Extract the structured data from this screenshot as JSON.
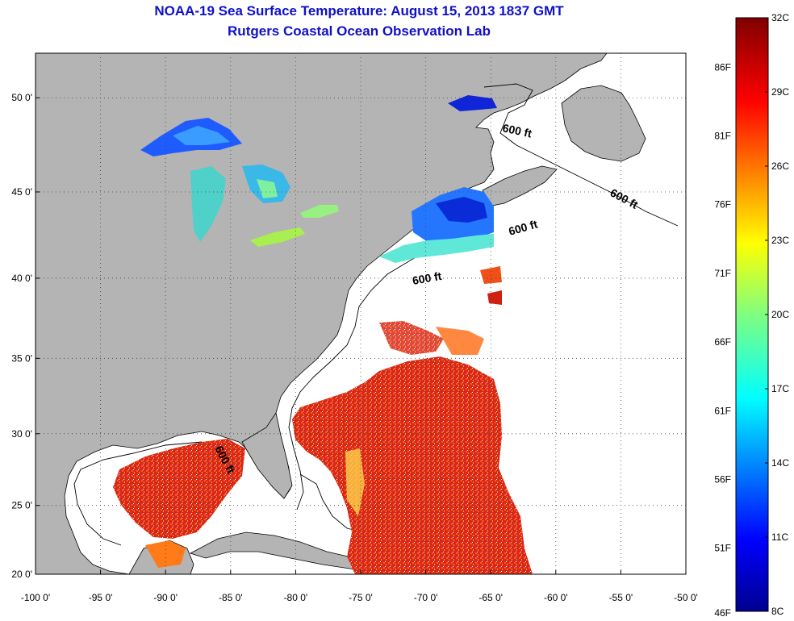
{
  "title": "NOAA-19 Sea Surface Temperature:  August 15, 2013 1837 GMT",
  "subtitle": "Rutgers Coastal Ocean Observation Lab",
  "x_ticks": [
    "-100 0'",
    "-95 0'",
    "-90 0'",
    "-85 0'",
    "-80 0'",
    "-75 0'",
    "-70 0'",
    "-65 0'",
    "-60 0'",
    "-55 0'",
    "-50 0'"
  ],
  "y_ticks": [
    "50 0'",
    "45 0'",
    "40 0'",
    "35 0'",
    "30 0'",
    "25 0'",
    "20 0'"
  ],
  "depth_labels": [
    "600 ft",
    "600 ft",
    "600 ft",
    "600 ft",
    "600 ft"
  ],
  "colorbar": {
    "celsius": [
      "32C",
      "29C",
      "26C",
      "23C",
      "20C",
      "17C",
      "14C",
      "11C",
      "8C"
    ],
    "fahrenheit": [
      "86F",
      "81F",
      "76F",
      "71F",
      "66F",
      "61F",
      "56F",
      "51F",
      "46F"
    ]
  },
  "colors": {
    "land": "#b4b4b4",
    "ocean_nodata": "#ffffff",
    "title": "#1010c8"
  }
}
